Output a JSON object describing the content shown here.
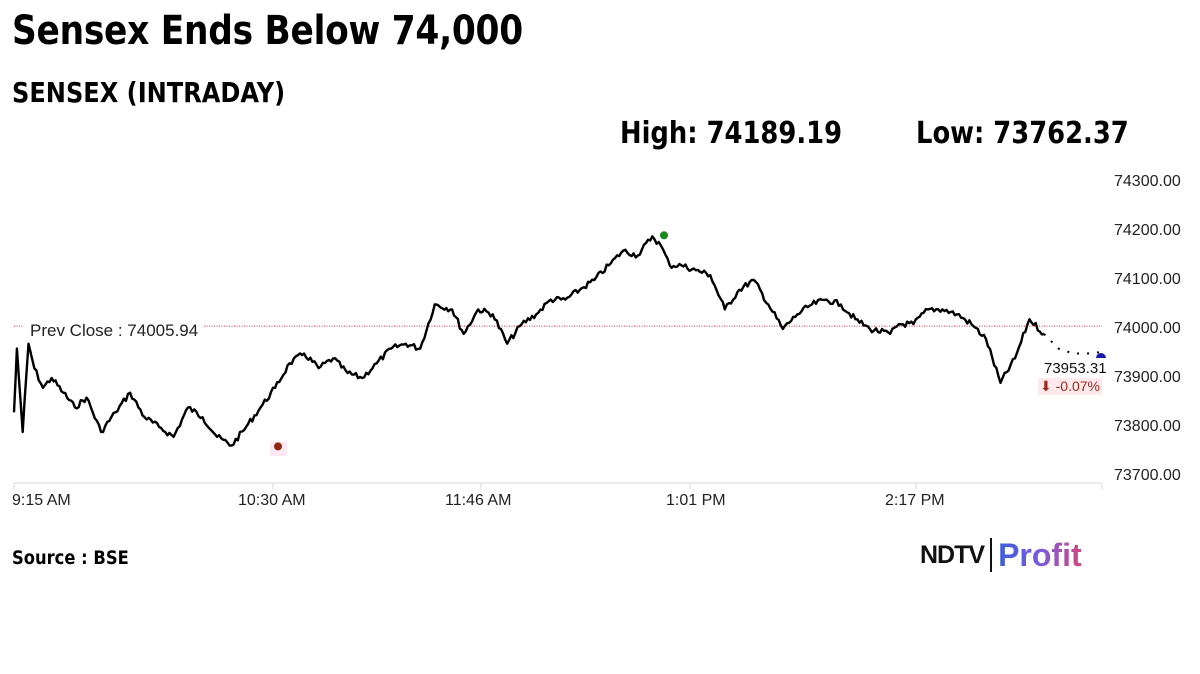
{
  "header": {
    "title": "Sensex Ends Below 74,000",
    "subtitle": "SENSEX (INTRADAY)",
    "high_label": "High: 74189.19",
    "low_label": "Low: 73762.37"
  },
  "prev_close": {
    "label": "Prev Close : 74005.94",
    "value": 74005.94,
    "color": "#e0303a"
  },
  "last": {
    "value_label": "73953.31",
    "change_label": "⬇ -0.07%",
    "change_color": "#9b2a1a"
  },
  "markers": {
    "high_color": "#1a8a1a",
    "low_color": "#8b2a10",
    "last_color": "#1a1aa8"
  },
  "footer": {
    "source": "Source : BSE",
    "logo_ndtv": "NDTV",
    "logo_profit": "Profit"
  },
  "chart_data": {
    "type": "line",
    "title": "SENSEX (INTRADAY)",
    "subtitle": "Sensex Ends Below 74,000",
    "xlabel": "",
    "ylabel": "",
    "x_ticks": [
      "9:15 AM",
      "10:30 AM",
      "11:46 AM",
      "1:01 PM",
      "2:17 PM"
    ],
    "y_ticks": [
      74300.0,
      74200.0,
      74100.0,
      74000.0,
      73900.0,
      73800.0,
      73700.0
    ],
    "y_tick_labels": [
      "74300.00",
      "74200.00",
      "74100.00",
      "74000.00",
      "73900.00",
      "73800.00",
      "73700.00"
    ],
    "ylim": [
      73700,
      74300
    ],
    "grid": false,
    "legend": null,
    "annotations": {
      "high": 74189.19,
      "low": 73762.37,
      "prev_close": 74005.94,
      "last": 73953.31,
      "change_pct": -0.07
    },
    "series": [
      {
        "name": "SENSEX",
        "x": [
          "9:15",
          "9:16",
          "9:18",
          "9:20",
          "9:22",
          "9:25",
          "9:28",
          "9:32",
          "9:36",
          "9:40",
          "9:45",
          "9:50",
          "9:55",
          "10:00",
          "10:05",
          "10:10",
          "10:15",
          "10:20",
          "10:25",
          "10:30",
          "10:35",
          "10:40",
          "10:45",
          "10:50",
          "10:55",
          "11:00",
          "11:05",
          "11:10",
          "11:15",
          "11:20",
          "11:25",
          "11:30",
          "11:35",
          "11:40",
          "11:46",
          "11:50",
          "11:55",
          "12:00",
          "12:05",
          "12:10",
          "12:15",
          "12:20",
          "12:25",
          "12:30",
          "12:35",
          "12:40",
          "12:45",
          "12:50",
          "12:55",
          "12:58",
          "13:01",
          "13:05",
          "13:10",
          "13:15",
          "13:20",
          "13:25",
          "13:30",
          "13:35",
          "13:40",
          "13:45",
          "13:50",
          "13:55",
          "14:00",
          "14:05",
          "14:10",
          "14:17",
          "14:20",
          "14:25",
          "14:30",
          "14:35",
          "14:40",
          "14:45",
          "14:50",
          "14:55",
          "15:00",
          "15:05",
          "15:10",
          "15:15",
          "15:20",
          "15:25",
          "15:30"
        ],
        "values": [
          73830,
          73960,
          73790,
          73970,
          73920,
          73880,
          73900,
          73870,
          73840,
          73860,
          73790,
          73830,
          73870,
          73820,
          73800,
          73780,
          73840,
          73820,
          73780,
          73762,
          73800,
          73840,
          73880,
          73930,
          73950,
          73920,
          73940,
          73910,
          73900,
          73930,
          73960,
          73970,
          73960,
          74050,
          74040,
          73990,
          74040,
          74030,
          73970,
          74010,
          74030,
          74060,
          74060,
          74080,
          74100,
          74130,
          74160,
          74150,
          74189,
          74170,
          74130,
          74130,
          74120,
          74110,
          74040,
          74080,
          74100,
          74050,
          74000,
          74030,
          74050,
          74060,
          74050,
          74020,
          74000,
          73990,
          74010,
          74010,
          74040,
          74040,
          74030,
          74010,
          73980,
          73890,
          73940,
          74020,
          73990,
          73960,
          73950,
          73950,
          73953
        ]
      }
    ]
  }
}
